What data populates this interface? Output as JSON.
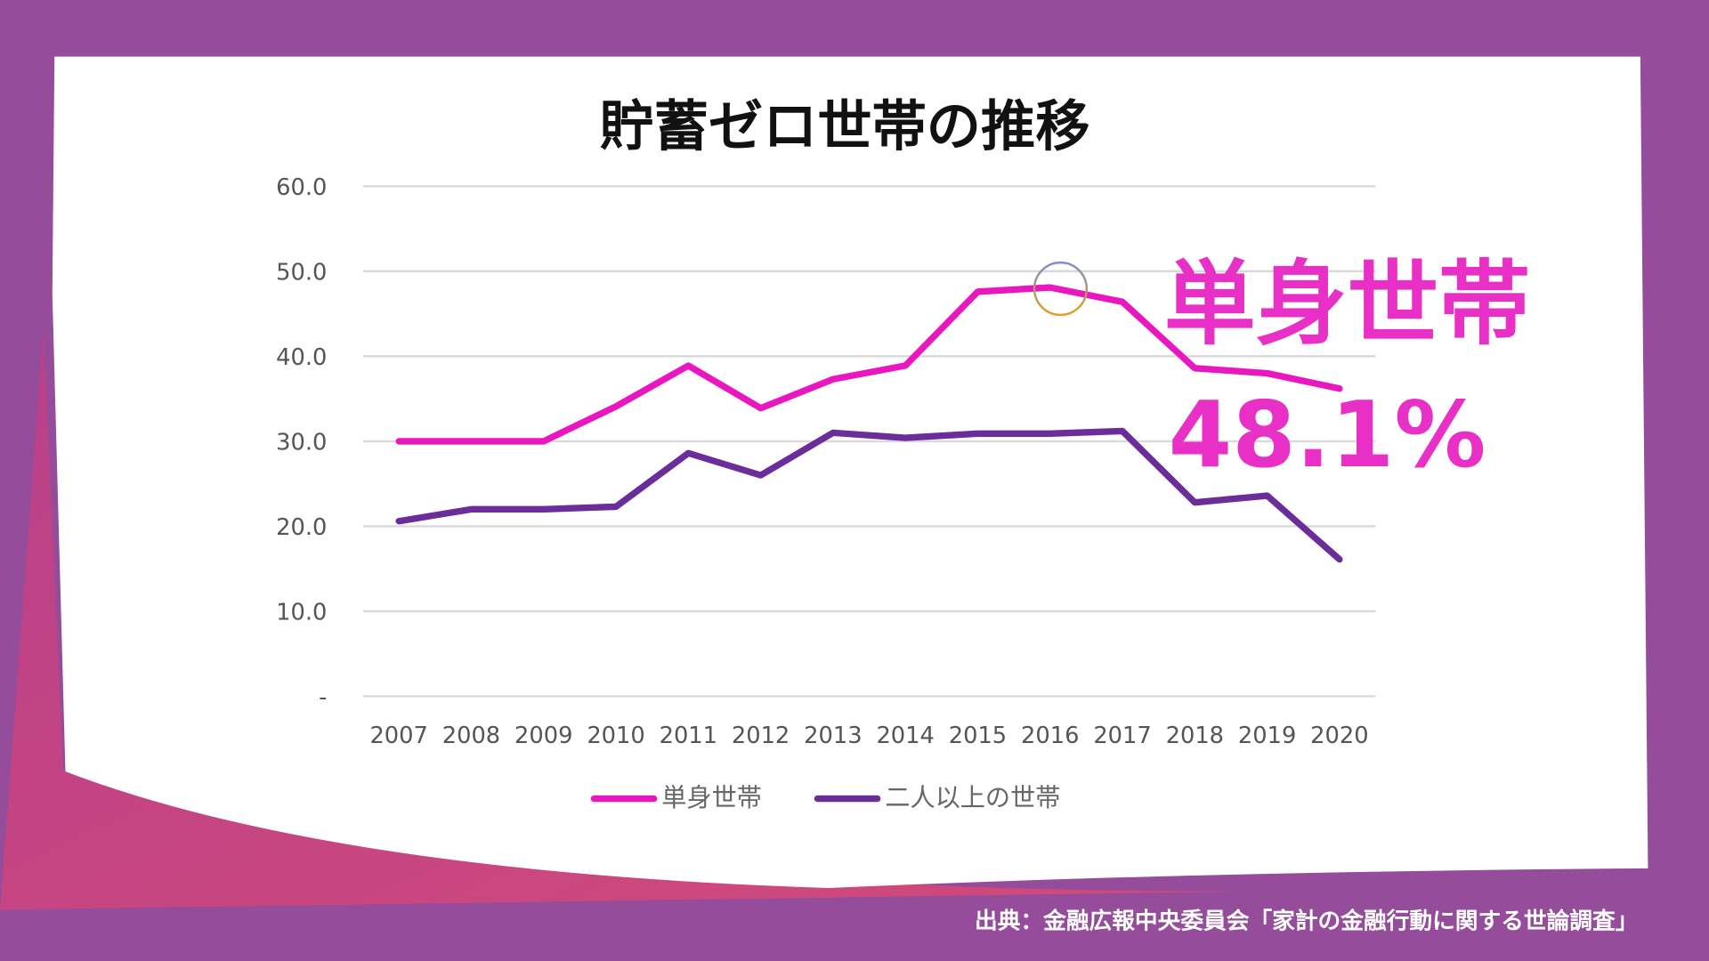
{
  "colors": {
    "background": "#954c9a",
    "accent_pink": "#e82fc6",
    "single": "#e817c0",
    "multi": "#6b2d9a",
    "corner": "#c8467f"
  },
  "chart_data": {
    "type": "line",
    "title": "貯蓄ゼロ世帯の推移",
    "categories": [
      "2007",
      "2008",
      "2009",
      "2010",
      "2011",
      "2012",
      "2013",
      "2014",
      "2015",
      "2016",
      "2017",
      "2018",
      "2019",
      "2020"
    ],
    "y_ticks": [
      "-",
      "10.0",
      "20.0",
      "30.0",
      "40.0",
      "50.0",
      "60.0"
    ],
    "ylim": [
      0,
      60
    ],
    "grid": true,
    "legend_placement": "bottom",
    "series": [
      {
        "name": "単身世帯",
        "values": [
          30.0,
          30.0,
          30.0,
          34.1,
          38.9,
          33.9,
          37.3,
          38.9,
          47.6,
          48.1,
          46.4,
          38.6,
          38.0,
          36.2
        ]
      },
      {
        "name": "二人以上の世帯",
        "values": [
          20.6,
          22.0,
          22.0,
          22.3,
          28.6,
          26.0,
          31.0,
          30.4,
          30.9,
          30.9,
          31.2,
          22.8,
          23.6,
          16.1
        ]
      }
    ],
    "highlight": {
      "category": "2016",
      "series": "単身世帯"
    }
  },
  "annotation": {
    "label": "単身世帯",
    "value": "48.1%"
  },
  "source": "出典：金融広報中央委員会「家計の金融行動に関する世論調査」"
}
